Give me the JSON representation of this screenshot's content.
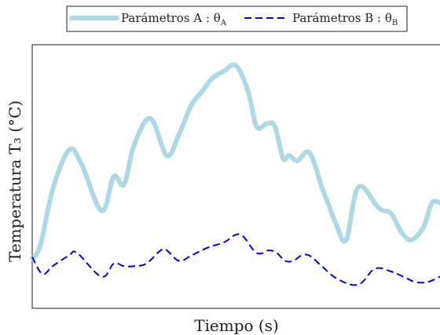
{
  "chart_data": {
    "type": "line",
    "xlabel": "Tiempo (s)",
    "ylabel": "Temperatura T₃ (°C)",
    "legend_position": "top-center",
    "grid": false,
    "xlim": [
      0,
      100
    ],
    "ylim": [
      0,
      100
    ],
    "series": [
      {
        "name": "Parámetros A : θ_A",
        "legend_text": "Parámetros A : θ",
        "legend_sub": "A",
        "color": "#add8e6",
        "style": "solid",
        "x": [
          0,
          2,
          5,
          9,
          12,
          17,
          20,
          22.5,
          25,
          29,
          33,
          36,
          39,
          41.5,
          44,
          47,
          50,
          53,
          55,
          57.5,
          59.5,
          61.5,
          63,
          65,
          68,
          71,
          72.5,
          74.5,
          77,
          80,
          85,
          88,
          90.5,
          93,
          96,
          98,
          100
        ],
        "y": [
          19,
          24,
          45,
          60,
          55,
          37,
          50,
          47,
          62,
          72,
          58,
          66,
          77,
          82,
          87,
          90,
          92,
          82,
          69,
          70,
          69,
          57,
          58,
          56,
          59,
          46,
          40,
          32,
          26,
          46,
          38,
          36,
          29,
          26,
          31,
          40,
          40
        ]
      },
      {
        "name": "Parámetros B : θ_B",
        "legend_text": "Parámetros B : θ",
        "legend_sub": "B",
        "color": "#0000dd",
        "style": "dashed",
        "x": [
          0,
          2.5,
          5,
          9,
          11,
          17,
          20,
          22.5,
          25,
          28,
          31.5,
          33,
          36,
          39,
          43,
          47,
          51,
          55,
          58,
          60,
          62,
          64,
          66,
          68,
          71,
          75,
          80,
          84,
          88,
          91,
          94,
          97,
          100
        ],
        "y": [
          19.5,
          13,
          16,
          20,
          21,
          12,
          17,
          16,
          16,
          17,
          22,
          22,
          18,
          20,
          23,
          25,
          28,
          21,
          22,
          21,
          18,
          18,
          20,
          20,
          16,
          11,
          9,
          15,
          14,
          12,
          10,
          10,
          12
        ]
      }
    ]
  }
}
